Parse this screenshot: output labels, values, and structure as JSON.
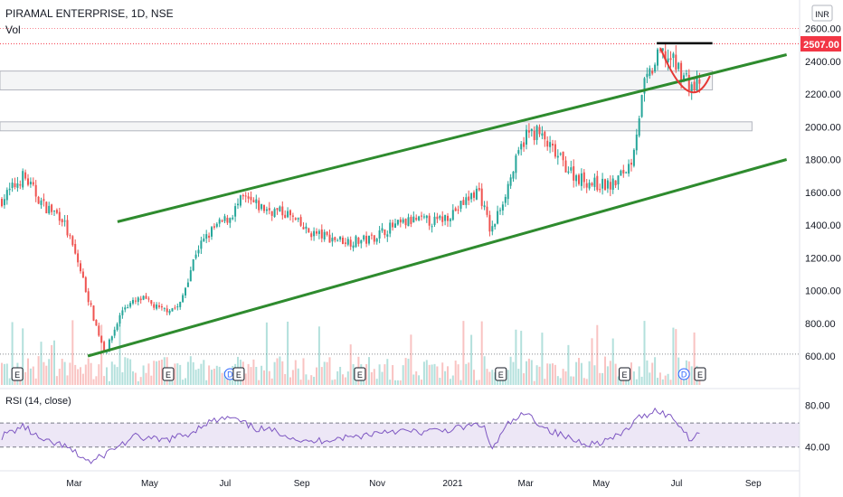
{
  "header": {
    "symbol": "PIRAMAL ENTERPRISE, 1D, NSE",
    "volume_label": "Vol"
  },
  "currency_badge": "INR",
  "last_price_label": "2507.00",
  "rsi_label": "RSI (14, close)",
  "colors": {
    "up": "#26a69a",
    "down": "#ef5350",
    "channel": "#2e8b2e",
    "rsi_line": "#7e57c2",
    "rsi_band": "#ede7f6",
    "price_badge": "#f23645",
    "pattern_bowl": "#e53935",
    "neckline": "#000000"
  },
  "chart_data": [
    {
      "type": "candlestick",
      "title": "PIRAMAL ENTERPRISE, 1D, NSE",
      "ylim": [
        550,
        2680
      ],
      "y_ticks": [
        "600.00",
        "800.00",
        "1000.00",
        "1200.00",
        "1400.00",
        "1600.00",
        "1800.00",
        "2000.00",
        "2200.00",
        "2400.00",
        "2600.00"
      ],
      "x_ticks": [
        "Mar",
        "May",
        "Jul",
        "Sep",
        "Nov",
        "2021",
        "Mar",
        "May",
        "Jul",
        "Sep"
      ],
      "last_price": 2507,
      "close_path": [
        {
          "date": "2020-01-02",
          "close": 1550
        },
        {
          "date": "2020-01-20",
          "close": 1700
        },
        {
          "date": "2020-02-05",
          "close": 1520
        },
        {
          "date": "2020-02-20",
          "close": 1450
        },
        {
          "date": "2020-03-05",
          "close": 1150
        },
        {
          "date": "2020-03-18",
          "close": 800
        },
        {
          "date": "2020-03-26",
          "close": 620
        },
        {
          "date": "2020-04-10",
          "close": 900
        },
        {
          "date": "2020-04-25",
          "close": 950
        },
        {
          "date": "2020-05-10",
          "close": 880
        },
        {
          "date": "2020-05-25",
          "close": 900
        },
        {
          "date": "2020-06-08",
          "close": 1250
        },
        {
          "date": "2020-06-22",
          "close": 1380
        },
        {
          "date": "2020-07-05",
          "close": 1450
        },
        {
          "date": "2020-07-15",
          "close": 1560
        },
        {
          "date": "2020-08-01",
          "close": 1500
        },
        {
          "date": "2020-08-20",
          "close": 1470
        },
        {
          "date": "2020-09-05",
          "close": 1360
        },
        {
          "date": "2020-09-25",
          "close": 1320
        },
        {
          "date": "2020-10-10",
          "close": 1300
        },
        {
          "date": "2020-10-25",
          "close": 1310
        },
        {
          "date": "2020-11-10",
          "close": 1380
        },
        {
          "date": "2020-12-01",
          "close": 1430
        },
        {
          "date": "2020-12-20",
          "close": 1420
        },
        {
          "date": "2021-01-05",
          "close": 1500
        },
        {
          "date": "2021-01-22",
          "close": 1620
        },
        {
          "date": "2021-02-01",
          "close": 1350
        },
        {
          "date": "2021-02-15",
          "close": 1650
        },
        {
          "date": "2021-03-01",
          "close": 1950
        },
        {
          "date": "2021-03-10",
          "close": 1970
        },
        {
          "date": "2021-03-25",
          "close": 1830
        },
        {
          "date": "2021-04-10",
          "close": 1700
        },
        {
          "date": "2021-04-25",
          "close": 1650
        },
        {
          "date": "2021-05-10",
          "close": 1640
        },
        {
          "date": "2021-05-25",
          "close": 1780
        },
        {
          "date": "2021-06-05",
          "close": 2250
        },
        {
          "date": "2021-06-18",
          "close": 2450
        },
        {
          "date": "2021-06-25",
          "close": 2420
        },
        {
          "date": "2021-07-05",
          "close": 2330
        },
        {
          "date": "2021-07-15",
          "close": 2230
        },
        {
          "date": "2021-07-22",
          "close": 2300
        },
        {
          "date": "2021-07-30",
          "close": 2507
        }
      ],
      "channel_upper": [
        {
          "date": "2020-04-05",
          "value": 1420
        },
        {
          "date": "2021-09-28",
          "value": 2440
        }
      ],
      "channel_lower": [
        {
          "date": "2020-03-12",
          "value": 600
        },
        {
          "date": "2021-09-28",
          "value": 1800
        }
      ],
      "zones": [
        {
          "from_date": "2020-01-01",
          "to_date": "2021-07-30",
          "low": 2225,
          "high": 2340
        },
        {
          "from_date": "2020-01-01",
          "to_date": "2021-08-31",
          "low": 1975,
          "high": 2030
        }
      ],
      "cup_handle": {
        "start": "2021-06-18",
        "bottom": "2021-07-12",
        "end": "2021-07-28",
        "top": 2480,
        "low": 2200
      },
      "neckline": {
        "from": "2021-06-15",
        "to": "2021-07-30",
        "value": 2510
      },
      "events": [
        {
          "date": "2020-01-15",
          "label": "E"
        },
        {
          "date": "2020-05-16",
          "label": "E"
        },
        {
          "date": "2020-07-05",
          "label": "D"
        },
        {
          "date": "2020-07-12",
          "label": "E"
        },
        {
          "date": "2020-10-18",
          "label": "E"
        },
        {
          "date": "2021-02-09",
          "label": "E"
        },
        {
          "date": "2021-05-20",
          "label": "E"
        },
        {
          "date": "2021-07-07",
          "label": "D"
        },
        {
          "date": "2021-07-20",
          "label": "E"
        }
      ]
    },
    {
      "type": "line",
      "title": "RSI (14, close)",
      "ylim": [
        20,
        90
      ],
      "y_ticks": [
        "80.00",
        "40.00"
      ],
      "band": [
        40,
        60
      ],
      "series": [
        {
          "name": "RSI (14, close)",
          "points": [
            {
              "date": "2020-01-02",
              "value": 50
            },
            {
              "date": "2020-01-20",
              "value": 60
            },
            {
              "date": "2020-02-05",
              "value": 45
            },
            {
              "date": "2020-02-20",
              "value": 42
            },
            {
              "date": "2020-03-05",
              "value": 32
            },
            {
              "date": "2020-03-15",
              "value": 25
            },
            {
              "date": "2020-04-01",
              "value": 38
            },
            {
              "date": "2020-04-20",
              "value": 50
            },
            {
              "date": "2020-05-10",
              "value": 46
            },
            {
              "date": "2020-06-01",
              "value": 52
            },
            {
              "date": "2020-06-15",
              "value": 63
            },
            {
              "date": "2020-07-05",
              "value": 68
            },
            {
              "date": "2020-07-25",
              "value": 58
            },
            {
              "date": "2020-08-15",
              "value": 54
            },
            {
              "date": "2020-09-05",
              "value": 44
            },
            {
              "date": "2020-09-25",
              "value": 48
            },
            {
              "date": "2020-10-15",
              "value": 50
            },
            {
              "date": "2020-11-10",
              "value": 56
            },
            {
              "date": "2020-12-05",
              "value": 54
            },
            {
              "date": "2021-01-01",
              "value": 57
            },
            {
              "date": "2021-01-25",
              "value": 62
            },
            {
              "date": "2021-02-02",
              "value": 38
            },
            {
              "date": "2021-02-15",
              "value": 62
            },
            {
              "date": "2021-03-01",
              "value": 72
            },
            {
              "date": "2021-03-20",
              "value": 56
            },
            {
              "date": "2021-04-10",
              "value": 46
            },
            {
              "date": "2021-04-25",
              "value": 43
            },
            {
              "date": "2021-05-15",
              "value": 50
            },
            {
              "date": "2021-06-01",
              "value": 68
            },
            {
              "date": "2021-06-15",
              "value": 76
            },
            {
              "date": "2021-06-30",
              "value": 66
            },
            {
              "date": "2021-07-12",
              "value": 48
            },
            {
              "date": "2021-07-22",
              "value": 56
            },
            {
              "date": "2021-07-30",
              "value": 70
            }
          ]
        }
      ]
    }
  ]
}
